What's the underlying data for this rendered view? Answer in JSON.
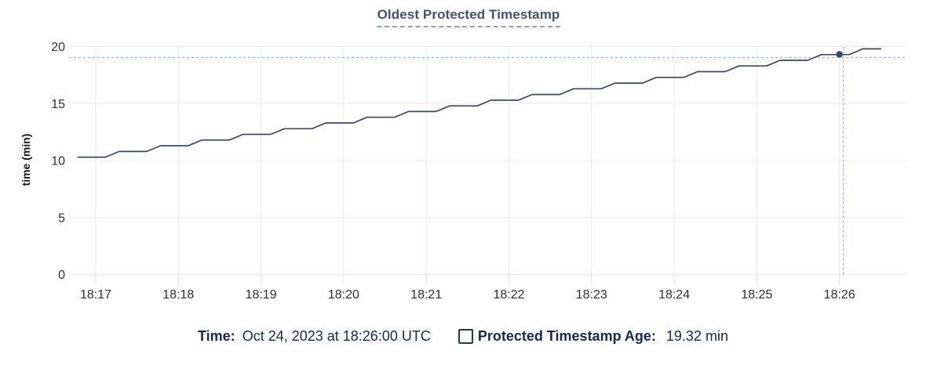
{
  "chart": {
    "title": "Oldest Protected Timestamp",
    "ylabel": "time (min)"
  },
  "chart_data": {
    "type": "line",
    "title": "Oldest Protected Timestamp",
    "xlabel": "",
    "ylabel": "time (min)",
    "ylim": [
      0,
      20
    ],
    "y_ticks": [
      0,
      5,
      10,
      15,
      20
    ],
    "x_ticks": [
      {
        "label": "18:17",
        "t": 0
      },
      {
        "label": "18:18",
        "t": 60
      },
      {
        "label": "18:19",
        "t": 120
      },
      {
        "label": "18:20",
        "t": 180
      },
      {
        "label": "18:21",
        "t": 240
      },
      {
        "label": "18:22",
        "t": 300
      },
      {
        "label": "18:23",
        "t": 360
      },
      {
        "label": "18:24",
        "t": 420
      },
      {
        "label": "18:25",
        "t": 480
      },
      {
        "label": "18:26",
        "t": 540
      }
    ],
    "grid": true,
    "legend_position": "bottom",
    "series": [
      {
        "name": "Protected Timestamp Age",
        "unit": "min",
        "points": [
          [
            -13,
            10.3
          ],
          [
            7,
            10.3
          ],
          [
            17,
            10.8
          ],
          [
            37,
            10.8
          ],
          [
            47,
            11.3
          ],
          [
            67,
            11.3
          ],
          [
            77,
            11.8
          ],
          [
            97,
            11.8
          ],
          [
            107,
            12.3
          ],
          [
            127,
            12.3
          ],
          [
            137,
            12.8
          ],
          [
            157,
            12.8
          ],
          [
            167,
            13.3
          ],
          [
            187,
            13.3
          ],
          [
            197,
            13.8
          ],
          [
            217,
            13.8
          ],
          [
            227,
            14.3
          ],
          [
            247,
            14.3
          ],
          [
            257,
            14.8
          ],
          [
            277,
            14.8
          ],
          [
            287,
            15.3
          ],
          [
            307,
            15.3
          ],
          [
            317,
            15.8
          ],
          [
            337,
            15.8
          ],
          [
            347,
            16.3
          ],
          [
            367,
            16.3
          ],
          [
            377,
            16.8
          ],
          [
            397,
            16.8
          ],
          [
            407,
            17.3
          ],
          [
            427,
            17.3
          ],
          [
            437,
            17.8
          ],
          [
            457,
            17.8
          ],
          [
            467,
            18.3
          ],
          [
            487,
            18.3
          ],
          [
            497,
            18.8
          ],
          [
            517,
            18.8
          ],
          [
            527,
            19.3
          ],
          [
            547,
            19.3
          ],
          [
            557,
            19.8
          ],
          [
            570,
            19.8
          ]
        ]
      }
    ],
    "hover": {
      "time_label": "18:26:00",
      "t": 540,
      "value": 19.32,
      "crosshair": true
    }
  },
  "legend": {
    "time_label": "Time:",
    "time_value": "Oct 24, 2023 at 18:26:00 UTC",
    "checkbox_icon": "empty-square",
    "series_label": "Protected Timestamp Age:",
    "series_value": "19.32 min"
  },
  "colors": {
    "line": "#394a63",
    "dot": "#394a63",
    "crosshair": "#a6bac9",
    "grid": "#ebebeb",
    "title_text": "#43536e",
    "legend_text": "#16294e",
    "axis_text": "#2e2e2e"
  }
}
